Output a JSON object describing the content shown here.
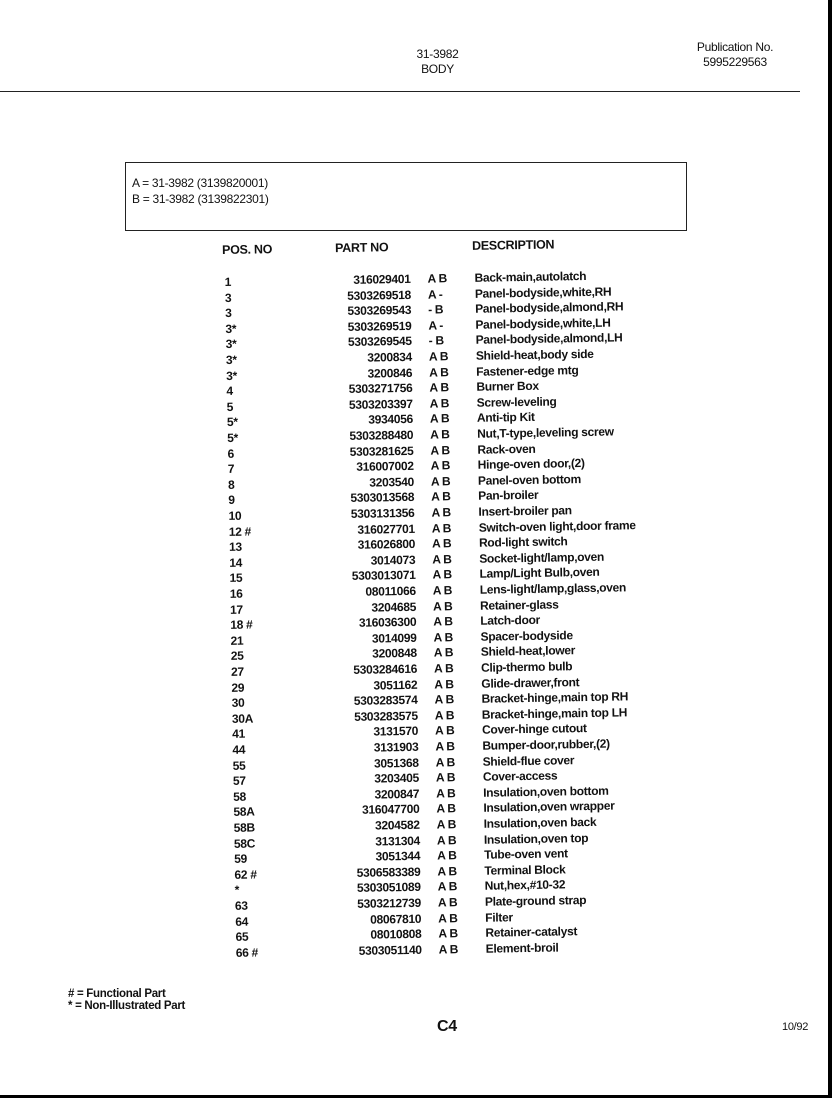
{
  "header": {
    "model": "31-3982",
    "section": "BODY",
    "publication_label": "Publication No.",
    "publication_no": "5995229563"
  },
  "legend_box": [
    "A = 31-3982 (3139820001)",
    "B = 31-3982 (3139822301)"
  ],
  "table": {
    "columns": [
      "POS. NO",
      "PART NO",
      "",
      "DESCRIPTION"
    ],
    "rows": [
      [
        "1",
        "316029401",
        "A B",
        "Back-main,autolatch"
      ],
      [
        "3",
        "5303269518",
        "A -",
        "Panel-bodyside,white,RH"
      ],
      [
        "3",
        "5303269543",
        "- B",
        "Panel-bodyside,almond,RH"
      ],
      [
        "3*",
        "5303269519",
        "A -",
        "Panel-bodyside,white,LH"
      ],
      [
        "3*",
        "5303269545",
        "- B",
        "Panel-bodyside,almond,LH"
      ],
      [
        "3*",
        "3200834",
        "A B",
        "Shield-heat,body side"
      ],
      [
        "3*",
        "3200846",
        "A B",
        "Fastener-edge mtg"
      ],
      [
        "4",
        "5303271756",
        "A B",
        "Burner Box"
      ],
      [
        "5",
        "5303203397",
        "A B",
        "Screw-leveling"
      ],
      [
        "5*",
        "3934056",
        "A B",
        "Anti-tip Kit"
      ],
      [
        "5*",
        "5303288480",
        "A B",
        "Nut,T-type,leveling screw"
      ],
      [
        "6",
        "5303281625",
        "A B",
        "Rack-oven"
      ],
      [
        "7",
        "316007002",
        "A B",
        "Hinge-oven door,(2)"
      ],
      [
        "8",
        "3203540",
        "A B",
        "Panel-oven bottom"
      ],
      [
        "9",
        "5303013568",
        "A B",
        "Pan-broiler"
      ],
      [
        "10",
        "5303131356",
        "A B",
        "Insert-broiler pan"
      ],
      [
        "12 #",
        "316027701",
        "A B",
        "Switch-oven light,door frame"
      ],
      [
        "13",
        "316026800",
        "A B",
        "Rod-light switch"
      ],
      [
        "14",
        "3014073",
        "A B",
        "Socket-light/lamp,oven"
      ],
      [
        "15",
        "5303013071",
        "A B",
        "Lamp/Light Bulb,oven"
      ],
      [
        "16",
        "08011066",
        "A B",
        "Lens-light/lamp,glass,oven"
      ],
      [
        "17",
        "3204685",
        "A B",
        "Retainer-glass"
      ],
      [
        "18 #",
        "316036300",
        "A B",
        "Latch-door"
      ],
      [
        "21",
        "3014099",
        "A B",
        "Spacer-bodyside"
      ],
      [
        "25",
        "3200848",
        "A B",
        "Shield-heat,lower"
      ],
      [
        "27",
        "5303284616",
        "A B",
        "Clip-thermo bulb"
      ],
      [
        "29",
        "3051162",
        "A B",
        "Glide-drawer,front"
      ],
      [
        "30",
        "5303283574",
        "A B",
        "Bracket-hinge,main top RH"
      ],
      [
        "30A",
        "5303283575",
        "A B",
        "Bracket-hinge,main top LH"
      ],
      [
        "41",
        "3131570",
        "A B",
        "Cover-hinge cutout"
      ],
      [
        "44",
        "3131903",
        "A B",
        "Bumper-door,rubber,(2)"
      ],
      [
        "55",
        "3051368",
        "A B",
        "Shield-flue cover"
      ],
      [
        "57",
        "3203405",
        "A B",
        "Cover-access"
      ],
      [
        "58",
        "3200847",
        "A B",
        "Insulation,oven bottom"
      ],
      [
        "58A",
        "316047700",
        "A B",
        "Insulation,oven wrapper"
      ],
      [
        "58B",
        "3204582",
        "A B",
        "Insulation,oven back"
      ],
      [
        "58C",
        "3131304",
        "A B",
        "Insulation,oven top"
      ],
      [
        "59",
        "3051344",
        "A B",
        "Tube-oven vent"
      ],
      [
        "62 #",
        "5306583389",
        "A B",
        "Terminal Block"
      ],
      [
        "*",
        "5303051089",
        "A B",
        "Nut,hex,#10-32"
      ],
      [
        "63",
        "5303212739",
        "A B",
        "Plate-ground strap"
      ],
      [
        "64",
        "08067810",
        "A B",
        "Filter"
      ],
      [
        "65",
        "08010808",
        "A B",
        "Retainer-catalyst"
      ],
      [
        "66 #",
        "5303051140",
        "A B",
        "Element-broil"
      ]
    ]
  },
  "notes": [
    "# = Functional Part",
    "* = Non-Illustrated Part"
  ],
  "footer": {
    "page": "C4",
    "date": "10/92"
  }
}
